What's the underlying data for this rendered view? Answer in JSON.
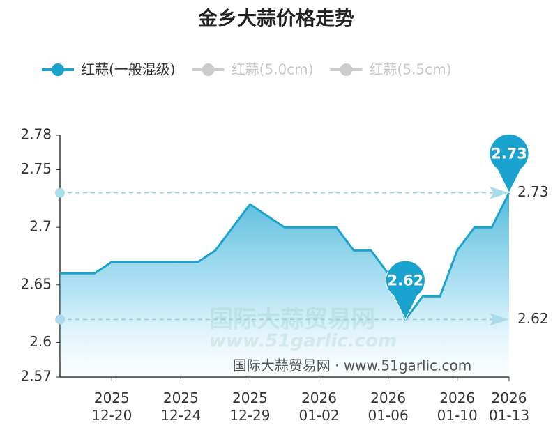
{
  "chart_data": {
    "type": "line",
    "title": "金乡大蒜价格走势",
    "categories": [
      null,
      null,
      null,
      "2025\n12-20",
      null,
      null,
      null,
      "2025\n12-24",
      null,
      null,
      null,
      "2025\n12-29",
      null,
      null,
      null,
      "2026\n01-02",
      null,
      null,
      null,
      "2026\n01-06",
      null,
      null,
      null,
      "2026\n01-10",
      null,
      null,
      "2026\n01-13"
    ],
    "series": [
      {
        "name": "红蒜(一般混级)",
        "color": "#1ba3cf",
        "visible": true,
        "values": [
          2.66,
          2.66,
          2.66,
          2.67,
          2.67,
          2.67,
          2.67,
          2.67,
          2.67,
          2.68,
          2.7,
          2.72,
          2.71,
          2.7,
          2.7,
          2.7,
          2.7,
          2.68,
          2.68,
          2.66,
          2.62,
          2.64,
          2.64,
          2.68,
          2.7,
          2.7,
          2.73
        ]
      },
      {
        "name": "红蒜(5.0cm)",
        "color": "#cccccc",
        "visible": false
      },
      {
        "name": "红蒜(5.5cm)",
        "color": "#cccccc",
        "visible": false
      }
    ],
    "mark_points": [
      2.73,
      2.62
    ],
    "mark_lines": [
      2.73,
      2.62
    ],
    "ylim": [
      2.57,
      2.78
    ],
    "yticks": [
      2.57,
      2.6,
      2.65,
      2.7,
      2.75,
      2.78
    ],
    "watermark": [
      "国际大蒜贸易网",
      "www.51garlic.com"
    ],
    "footer": "国际大蒜贸易网 · www.51garlic.com"
  }
}
